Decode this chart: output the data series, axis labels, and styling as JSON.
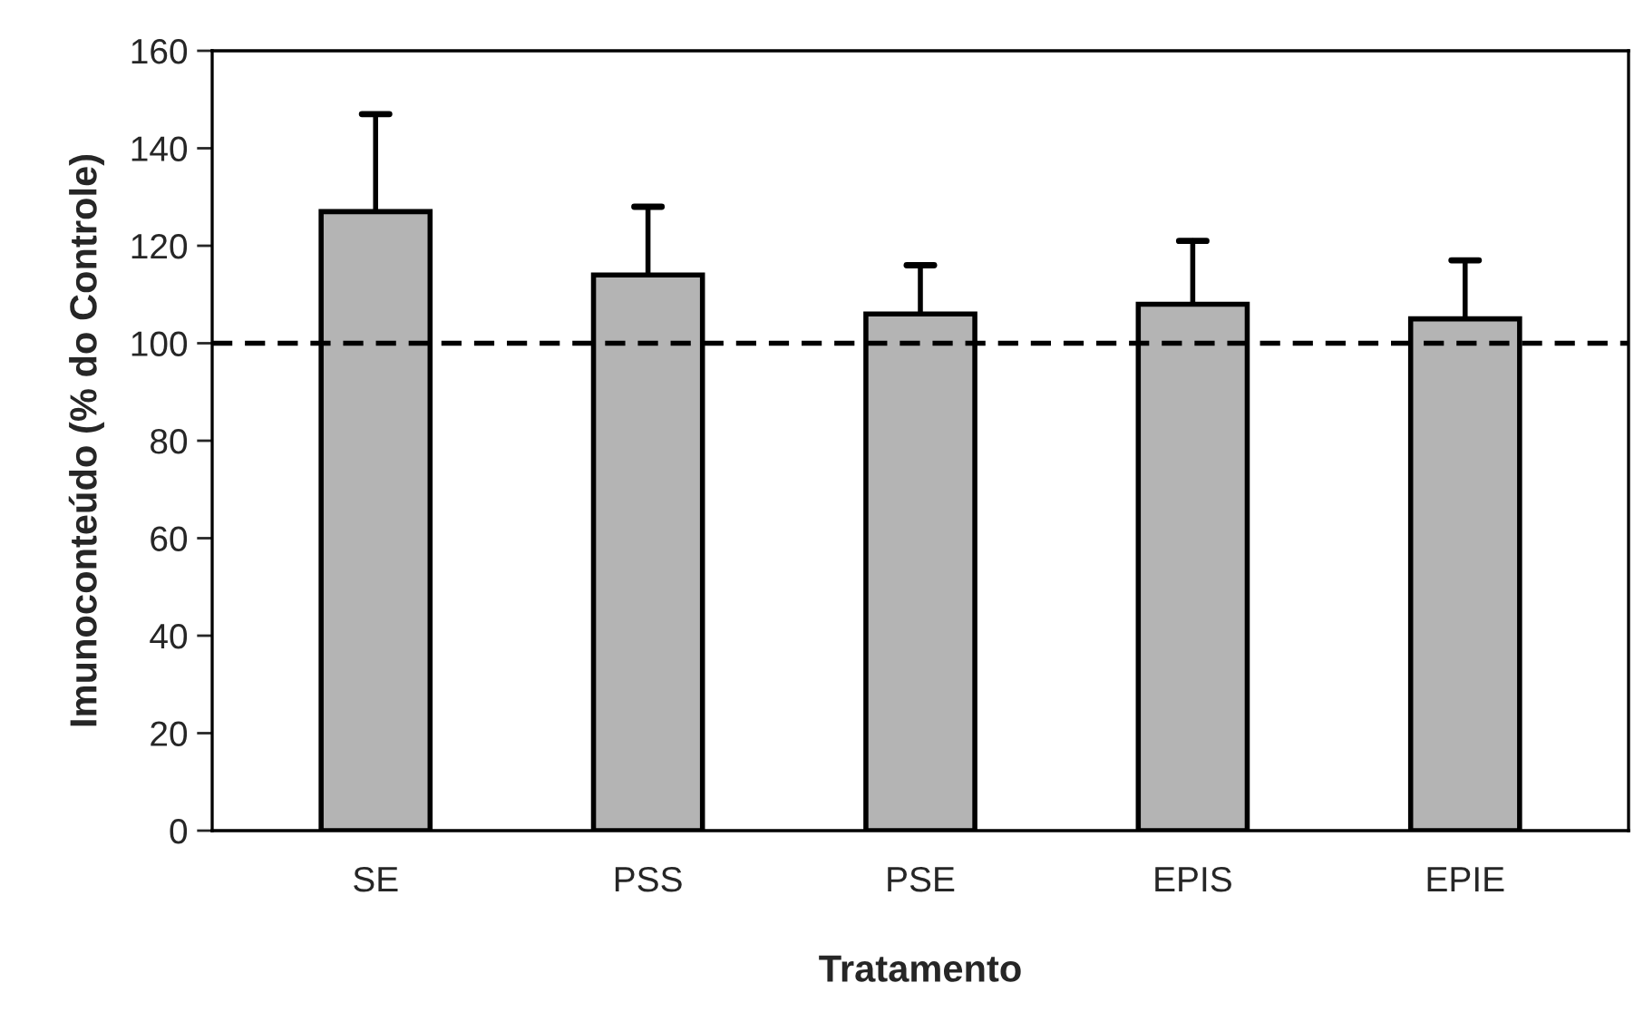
{
  "chart_data": {
    "type": "bar",
    "xlabel": "Tratamento",
    "ylabel": "Imunoconteúdo (% do Controle)",
    "categories": [
      "SE",
      "PSS",
      "PSE",
      "EPIS",
      "EPIE"
    ],
    "values": [
      127,
      114,
      106,
      108,
      105
    ],
    "errors": [
      [
        127,
        147
      ],
      [
        114,
        128
      ],
      [
        106,
        116
      ],
      [
        108,
        121
      ],
      [
        105,
        117
      ]
    ],
    "color": "#b4b4b4",
    "ylim": [
      0,
      160
    ],
    "yticks": [
      0,
      20,
      40,
      60,
      80,
      100,
      120,
      140,
      160
    ],
    "ref_lines": [
      {
        "axis": "y",
        "value": 100,
        "color": "#000000",
        "line_style": "dashed"
      }
    ],
    "grid": false,
    "legend": false
  }
}
